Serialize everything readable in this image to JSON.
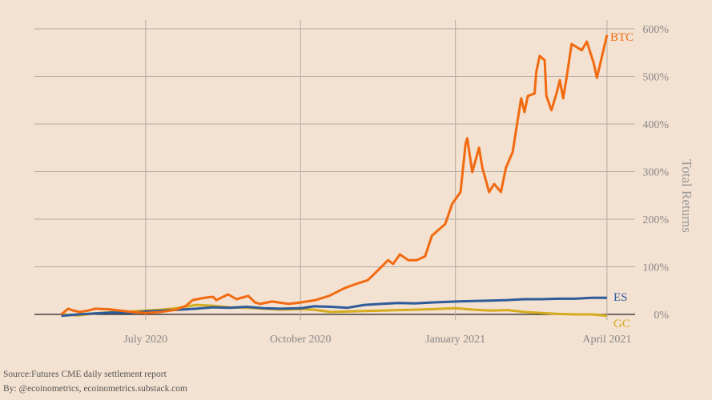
{
  "chart_data": {
    "type": "line",
    "xlabel": "",
    "ylabel": "Total Returns",
    "x_unit": "days since 2020-05-12",
    "xlim": [
      -16,
      325
    ],
    "ylim": [
      -20,
      620
    ],
    "x_ticks": [
      {
        "x": 50,
        "label": "July 2020"
      },
      {
        "x": 142,
        "label": "October 2020"
      },
      {
        "x": 234,
        "label": "January 2021"
      },
      {
        "x": 324,
        "label": "April 2021"
      }
    ],
    "y_ticks": [
      {
        "y": 0,
        "label": "0%"
      },
      {
        "y": 100,
        "label": "100%"
      },
      {
        "y": 200,
        "label": "200%"
      },
      {
        "y": 300,
        "label": "300%"
      },
      {
        "y": 400,
        "label": "400%"
      },
      {
        "y": 500,
        "label": "500%"
      },
      {
        "y": 600,
        "label": "600%"
      }
    ],
    "grid": true,
    "series": [
      {
        "name": "BTC",
        "color": "#f26a10",
        "x": [
          0,
          4,
          7,
          11,
          16,
          20,
          28,
          35,
          42,
          50,
          59,
          68,
          74,
          78,
          85,
          90,
          92,
          99,
          104,
          111,
          115,
          118,
          125,
          135,
          142,
          151,
          159,
          168,
          175,
          182,
          187,
          194,
          197,
          201,
          206,
          211,
          216,
          220,
          228,
          232,
          237,
          240,
          241,
          244,
          248,
          250,
          254,
          257,
          261,
          264,
          268,
          273,
          275,
          277,
          281,
          282,
          284,
          287,
          288,
          291,
          294,
          296,
          298,
          300,
          303,
          309,
          312,
          316,
          318,
          324
        ],
        "y": [
          0,
          12,
          8,
          5,
          8,
          12,
          11,
          8,
          5,
          3,
          5,
          10,
          18,
          30,
          35,
          37,
          30,
          42,
          32,
          39,
          25,
          22,
          27,
          22,
          25,
          30,
          39,
          55,
          64,
          72,
          89,
          114,
          106,
          126,
          114,
          114,
          122,
          165,
          190,
          232,
          257,
          358,
          370,
          299,
          350,
          308,
          257,
          274,
          257,
          308,
          341,
          454,
          425,
          459,
          464,
          509,
          543,
          534,
          459,
          429,
          464,
          492,
          454,
          497,
          568,
          555,
          573,
          529,
          497,
          587
        ]
      },
      {
        "name": "ES",
        "color": "#2e5b9a",
        "x": [
          0,
          10,
          20,
          30,
          40,
          50,
          60,
          70,
          80,
          90,
          100,
          110,
          120,
          130,
          142,
          150,
          160,
          170,
          180,
          190,
          200,
          210,
          220,
          234,
          245,
          255,
          265,
          275,
          285,
          295,
          305,
          315,
          324
        ],
        "y": [
          -3,
          0,
          2,
          4,
          3,
          6,
          8,
          10,
          12,
          15,
          14,
          16,
          13,
          12,
          13,
          17,
          16,
          14,
          20,
          22,
          24,
          23,
          25,
          27,
          28,
          29,
          30,
          32,
          32,
          33,
          33,
          35,
          35
        ]
      },
      {
        "name": "GC",
        "color": "#d4ac1e",
        "x": [
          0,
          10,
          20,
          30,
          40,
          50,
          60,
          70,
          80,
          90,
          100,
          110,
          120,
          130,
          142,
          150,
          160,
          170,
          180,
          190,
          200,
          210,
          220,
          234,
          245,
          255,
          265,
          275,
          285,
          295,
          305,
          315,
          324
        ],
        "y": [
          0,
          -2,
          2,
          5,
          6,
          8,
          10,
          14,
          20,
          18,
          15,
          14,
          12,
          10,
          11,
          10,
          5,
          6,
          7,
          8,
          9,
          10,
          11,
          13,
          10,
          8,
          9,
          5,
          3,
          1,
          0,
          0,
          -3
        ]
      }
    ]
  },
  "footer": {
    "source": "Source:Futures CME daily settlement report",
    "byline": "By: @ecoinometrics, ecoinometrics.substack.com"
  }
}
